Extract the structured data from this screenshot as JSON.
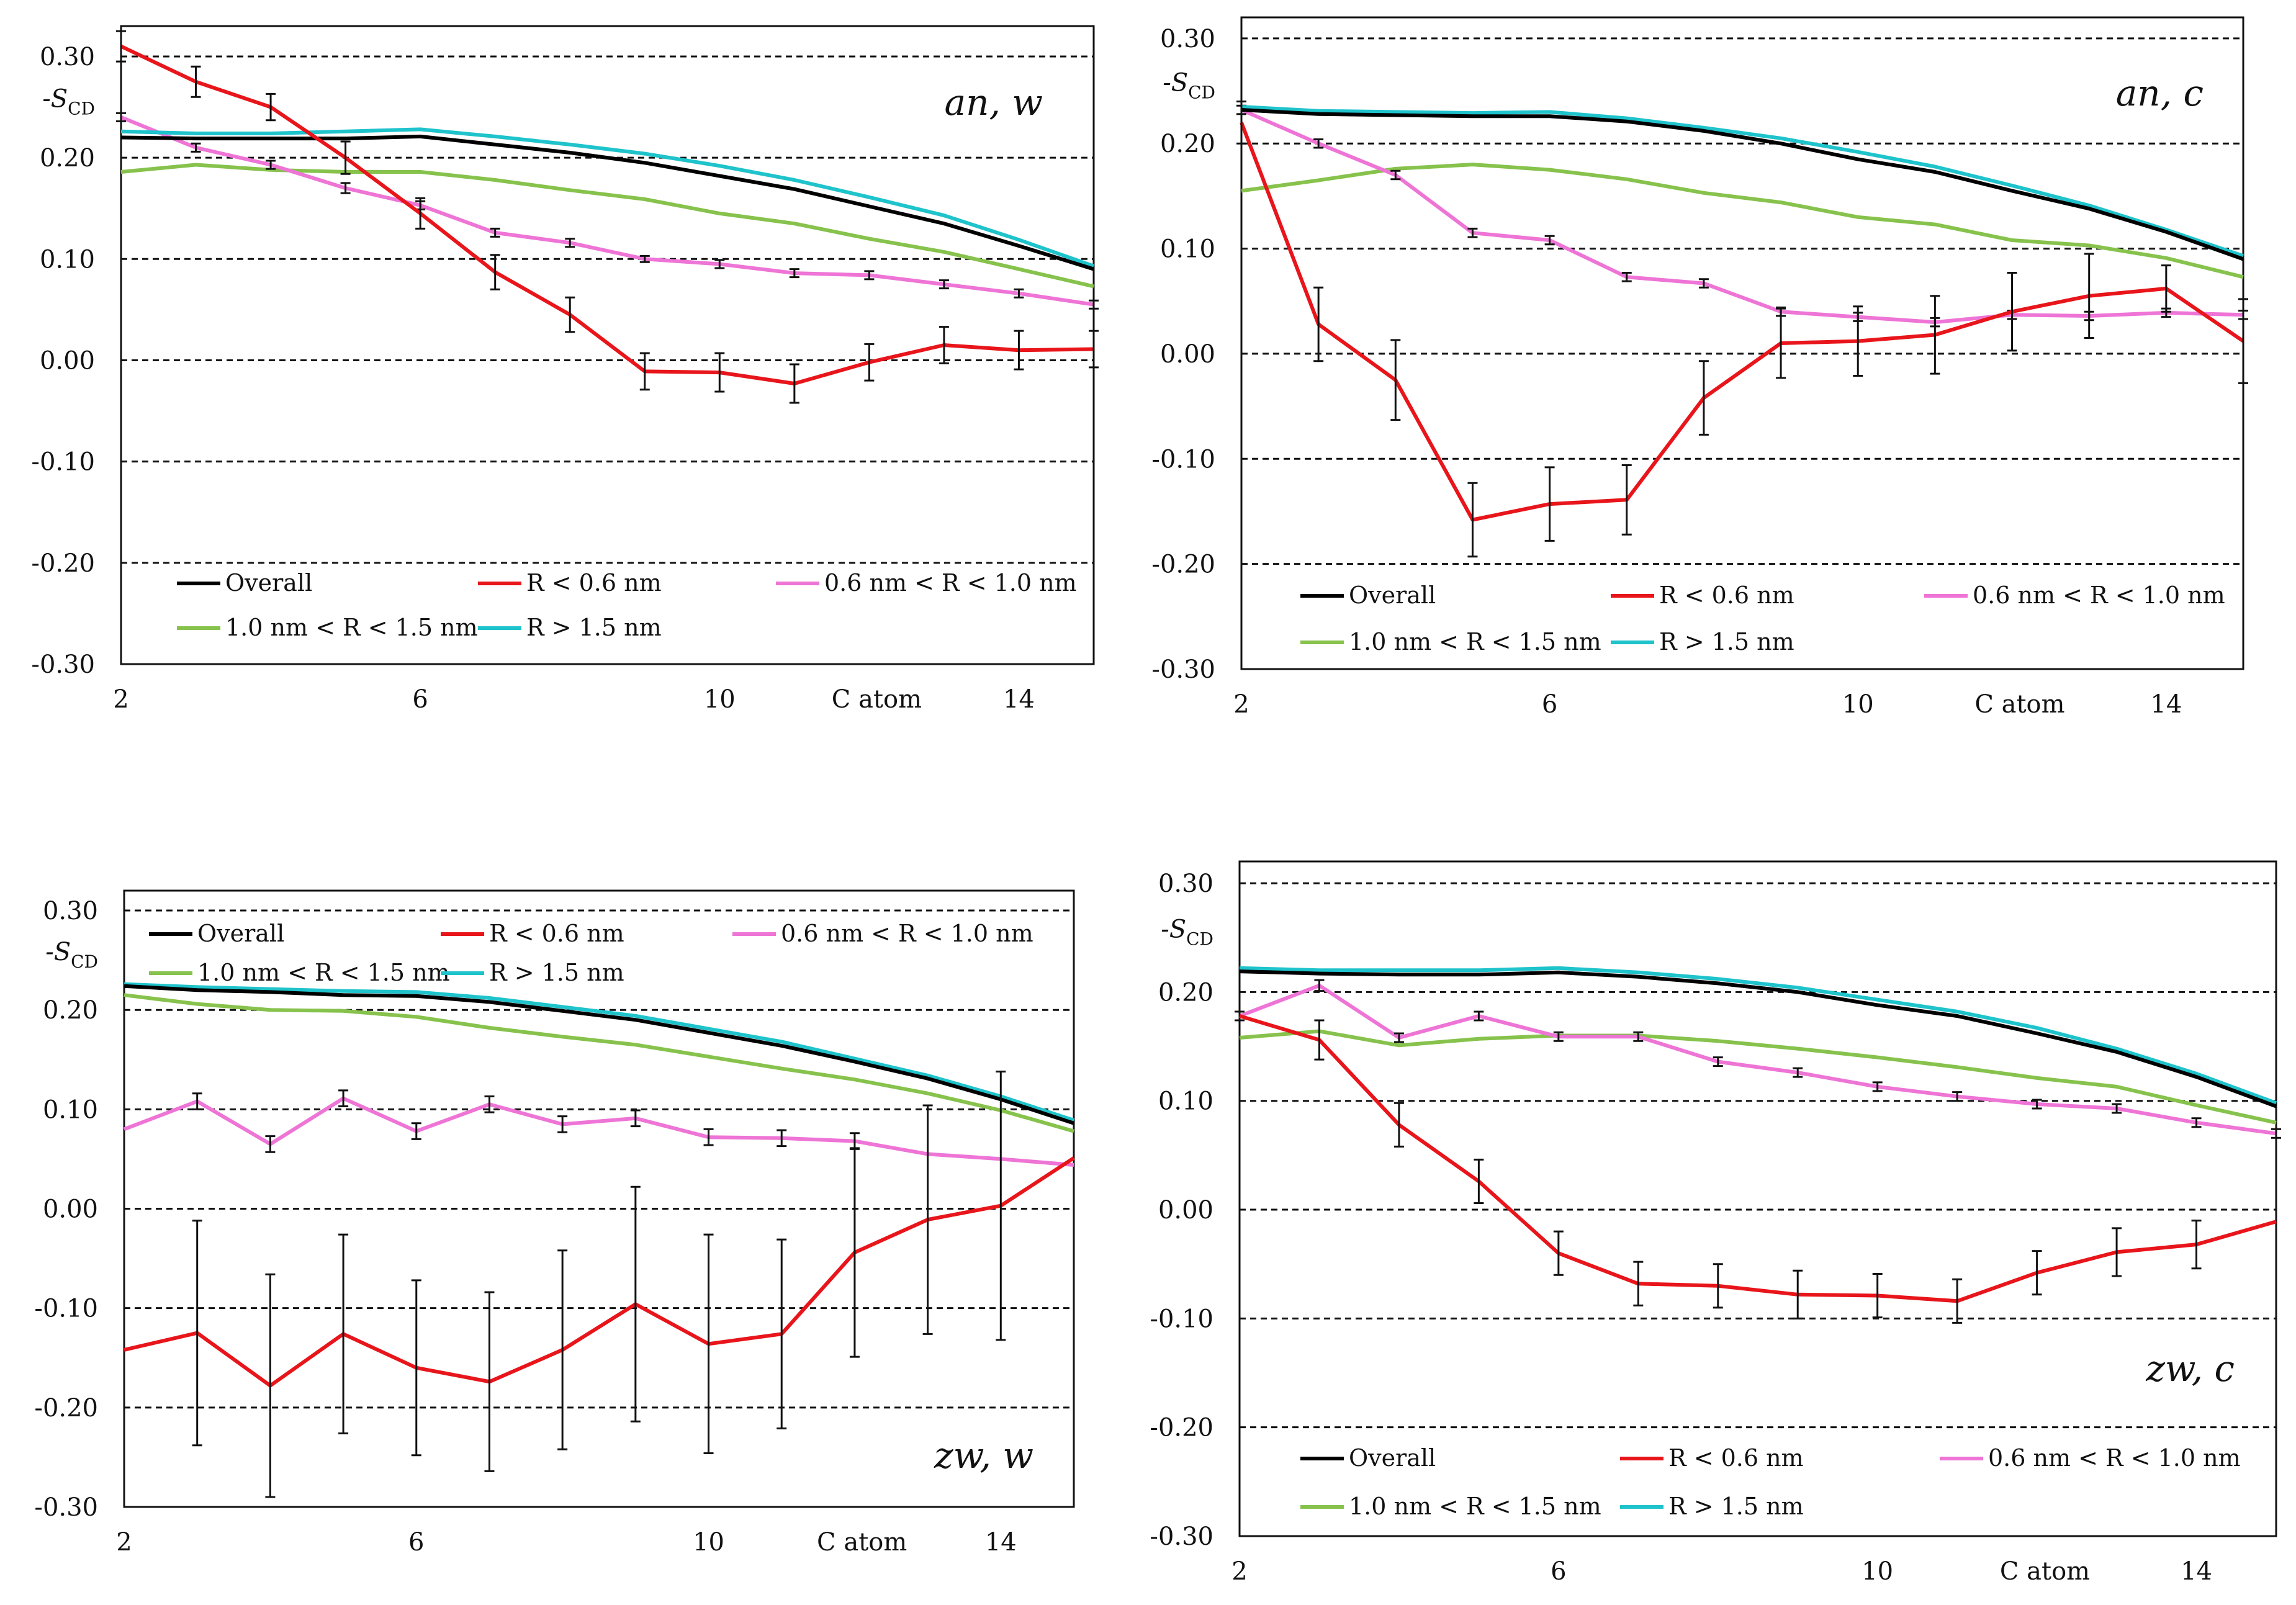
{
  "chart_data": [
    {
      "type": "line",
      "panel_label": "an, w",
      "ylabel_prefix": "-S",
      "ylabel_sub": "CD",
      "xlabel": "C atom",
      "xlim": [
        2,
        15
      ],
      "ylim": [
        -0.3,
        0.33
      ],
      "yticks": [
        "0.30",
        "0.20",
        "0.10",
        "0.00",
        "-0.10",
        "-0.20",
        "-0.30"
      ],
      "xticks": [
        "2",
        "6",
        "10",
        "14"
      ],
      "x": [
        2,
        3,
        4,
        5,
        6,
        7,
        8,
        9,
        10,
        11,
        12,
        13,
        14,
        15
      ],
      "legend_position": "bottom",
      "series": [
        {
          "name": "Overall",
          "color": "#000000",
          "values": [
            0.22,
            0.219,
            0.219,
            0.219,
            0.221,
            0.213,
            0.205,
            0.195,
            0.182,
            0.169,
            0.152,
            0.135,
            0.113,
            0.09
          ]
        },
        {
          "name": "R < 0.6 nm",
          "color": "#e8151b",
          "values": [
            0.31,
            0.275,
            0.25,
            0.2,
            0.145,
            0.087,
            0.045,
            -0.011,
            -0.012,
            -0.023,
            -0.002,
            0.015,
            0.01,
            0.011
          ],
          "errors": [
            0.015,
            0.015,
            0.013,
            0.016,
            0.015,
            0.017,
            0.017,
            0.018,
            0.019,
            0.019,
            0.018,
            0.018,
            0.019,
            0.018
          ]
        },
        {
          "name": "0.6 nm < R < 1.0 nm",
          "color": "#ee74d6",
          "values": [
            0.24,
            0.21,
            0.193,
            0.17,
            0.153,
            0.126,
            0.116,
            0.1,
            0.095,
            0.086,
            0.084,
            0.075,
            0.066,
            0.055
          ],
          "errors": [
            0.004,
            0.004,
            0.004,
            0.005,
            0.004,
            0.004,
            0.004,
            0.003,
            0.004,
            0.004,
            0.004,
            0.004,
            0.004,
            0.004
          ]
        },
        {
          "name": "1.0 nm < R < 1.5 nm",
          "color": "#86c24c",
          "values": [
            0.186,
            0.193,
            0.188,
            0.186,
            0.186,
            0.178,
            0.168,
            0.159,
            0.145,
            0.135,
            0.12,
            0.107,
            0.09,
            0.073
          ]
        },
        {
          "name": "R > 1.5 nm",
          "color": "#1fc3cb",
          "values": [
            0.226,
            0.224,
            0.224,
            0.226,
            0.228,
            0.221,
            0.213,
            0.204,
            0.192,
            0.178,
            0.161,
            0.143,
            0.119,
            0.093
          ]
        }
      ]
    },
    {
      "type": "line",
      "panel_label": "an, c",
      "ylabel_prefix": "-S",
      "ylabel_sub": "CD",
      "xlabel": "C atom",
      "xlim": [
        2,
        15
      ],
      "ylim": [
        -0.3,
        0.32
      ],
      "yticks": [
        "0.30",
        "0.20",
        "0.10",
        "0.00",
        "-0.10",
        "-0.20",
        "-0.30"
      ],
      "xticks": [
        "2",
        "6",
        "10",
        "14"
      ],
      "x": [
        2,
        3,
        4,
        5,
        6,
        7,
        8,
        9,
        10,
        11,
        12,
        13,
        14,
        15
      ],
      "legend_position": "bottom",
      "series": [
        {
          "name": "Overall",
          "color": "#000000",
          "values": [
            0.232,
            0.228,
            0.227,
            0.226,
            0.226,
            0.221,
            0.212,
            0.2,
            0.185,
            0.173,
            0.155,
            0.138,
            0.116,
            0.09
          ]
        },
        {
          "name": "R < 0.6 nm",
          "color": "#e8151b",
          "values": [
            0.22,
            0.028,
            -0.025,
            -0.158,
            -0.143,
            -0.139,
            -0.042,
            0.01,
            0.012,
            0.018,
            0.04,
            0.055,
            0.062,
            0.012
          ],
          "errors": [
            0.02,
            0.035,
            0.038,
            0.035,
            0.035,
            0.033,
            0.035,
            0.033,
            0.033,
            0.037,
            0.037,
            0.04,
            0.022,
            0.04
          ]
        },
        {
          "name": "0.6 nm < R < 1.0 nm",
          "color": "#ee74d6",
          "values": [
            0.232,
            0.2,
            0.17,
            0.115,
            0.108,
            0.073,
            0.067,
            0.04,
            0.035,
            0.03,
            0.037,
            0.036,
            0.039,
            0.037
          ],
          "errors": [
            0.004,
            0.004,
            0.004,
            0.004,
            0.004,
            0.004,
            0.004,
            0.004,
            0.004,
            0.004,
            0.004,
            0.004,
            0.004,
            0.004
          ]
        },
        {
          "name": "1.0 nm < R < 1.5 nm",
          "color": "#86c24c",
          "values": [
            0.155,
            0.165,
            0.176,
            0.18,
            0.175,
            0.166,
            0.153,
            0.144,
            0.13,
            0.123,
            0.108,
            0.103,
            0.091,
            0.073
          ]
        },
        {
          "name": "R > 1.5 nm",
          "color": "#1fc3cb",
          "values": [
            0.235,
            0.231,
            0.23,
            0.229,
            0.23,
            0.224,
            0.215,
            0.205,
            0.192,
            0.178,
            0.16,
            0.141,
            0.118,
            0.093
          ]
        }
      ]
    },
    {
      "type": "line",
      "panel_label": "zw, w",
      "ylabel_prefix": "-S",
      "ylabel_sub": "CD",
      "xlabel": "C atom",
      "xlim": [
        2,
        15
      ],
      "ylim": [
        -0.3,
        0.32
      ],
      "yticks": [
        "0.30",
        "0.20",
        "0.10",
        "0.00",
        "-0.10",
        "-0.20",
        "-0.30"
      ],
      "xticks": [
        "2",
        "6",
        "10",
        "14"
      ],
      "x": [
        2,
        3,
        4,
        5,
        6,
        7,
        8,
        9,
        10,
        11,
        12,
        13,
        14,
        15
      ],
      "legend_position": "top",
      "series": [
        {
          "name": "Overall",
          "color": "#000000",
          "values": [
            0.224,
            0.22,
            0.218,
            0.215,
            0.214,
            0.208,
            0.199,
            0.19,
            0.177,
            0.164,
            0.148,
            0.131,
            0.11,
            0.086
          ]
        },
        {
          "name": "R < 0.6 nm",
          "color": "#e8151b",
          "values": [
            -0.142,
            -0.125,
            -0.178,
            -0.126,
            -0.16,
            -0.174,
            -0.142,
            -0.096,
            -0.136,
            -0.126,
            -0.044,
            -0.011,
            0.003,
            0.051
          ],
          "errors": [
            0.0,
            0.113,
            0.112,
            0.1,
            0.088,
            0.09,
            0.1,
            0.118,
            0.11,
            0.095,
            0.105,
            0.115,
            0.135,
            0.0
          ]
        },
        {
          "name": "0.6 nm < R < 1.0 nm",
          "color": "#ee74d6",
          "values": [
            0.08,
            0.108,
            0.065,
            0.111,
            0.078,
            0.105,
            0.085,
            0.091,
            0.072,
            0.071,
            0.068,
            0.055,
            0.05,
            0.044
          ],
          "errors": [
            0.0,
            0.008,
            0.008,
            0.008,
            0.008,
            0.008,
            0.008,
            0.008,
            0.008,
            0.008,
            0.008,
            0.0,
            0.0,
            0.0
          ]
        },
        {
          "name": "1.0 nm < R < 1.5 nm",
          "color": "#86c24c",
          "values": [
            0.215,
            0.206,
            0.2,
            0.199,
            0.193,
            0.182,
            0.173,
            0.165,
            0.153,
            0.141,
            0.13,
            0.116,
            0.099,
            0.078
          ]
        },
        {
          "name": "R > 1.5 nm",
          "color": "#1fc3cb",
          "values": [
            0.226,
            0.223,
            0.221,
            0.219,
            0.218,
            0.212,
            0.203,
            0.194,
            0.181,
            0.168,
            0.151,
            0.134,
            0.113,
            0.089
          ]
        }
      ]
    },
    {
      "type": "line",
      "panel_label": "zw, c",
      "ylabel_prefix": "-S",
      "ylabel_sub": "CD",
      "xlabel": "C atom",
      "xlim": [
        2,
        15
      ],
      "ylim": [
        -0.3,
        0.32
      ],
      "yticks": [
        "0.30",
        "0.20",
        "0.10",
        "0.00",
        "-0.10",
        "-0.20",
        "-0.30"
      ],
      "xticks": [
        "2",
        "6",
        "10",
        "14"
      ],
      "x": [
        2,
        3,
        4,
        5,
        6,
        7,
        8,
        9,
        10,
        11,
        12,
        13,
        14,
        15
      ],
      "legend_position": "bottom",
      "series": [
        {
          "name": "Overall",
          "color": "#000000",
          "values": [
            0.219,
            0.217,
            0.216,
            0.216,
            0.218,
            0.214,
            0.208,
            0.2,
            0.188,
            0.178,
            0.162,
            0.145,
            0.122,
            0.095
          ]
        },
        {
          "name": "R < 0.6 nm",
          "color": "#e8151b",
          "values": [
            0.178,
            0.156,
            0.078,
            0.026,
            -0.04,
            -0.068,
            -0.07,
            -0.078,
            -0.079,
            -0.084,
            -0.058,
            -0.039,
            -0.032,
            -0.011
          ],
          "errors": [
            0.0,
            0.018,
            0.02,
            0.02,
            0.02,
            0.02,
            0.02,
            0.022,
            0.02,
            0.02,
            0.02,
            0.022,
            0.022,
            0.0
          ]
        },
        {
          "name": "0.6 nm < R < 1.0 nm",
          "color": "#ee74d6",
          "values": [
            0.178,
            0.206,
            0.158,
            0.178,
            0.159,
            0.159,
            0.136,
            0.126,
            0.113,
            0.104,
            0.097,
            0.093,
            0.08,
            0.07
          ],
          "errors": [
            0.004,
            0.005,
            0.004,
            0.004,
            0.004,
            0.004,
            0.004,
            0.004,
            0.004,
            0.004,
            0.004,
            0.004,
            0.004,
            0.004
          ]
        },
        {
          "name": "1.0 nm < R < 1.5 nm",
          "color": "#86c24c",
          "values": [
            0.158,
            0.164,
            0.151,
            0.157,
            0.16,
            0.16,
            0.155,
            0.148,
            0.14,
            0.131,
            0.121,
            0.113,
            0.096,
            0.08
          ]
        },
        {
          "name": "R > 1.5 nm",
          "color": "#1fc3cb",
          "values": [
            0.222,
            0.22,
            0.22,
            0.22,
            0.222,
            0.218,
            0.212,
            0.204,
            0.193,
            0.182,
            0.167,
            0.148,
            0.125,
            0.098
          ]
        }
      ]
    }
  ]
}
